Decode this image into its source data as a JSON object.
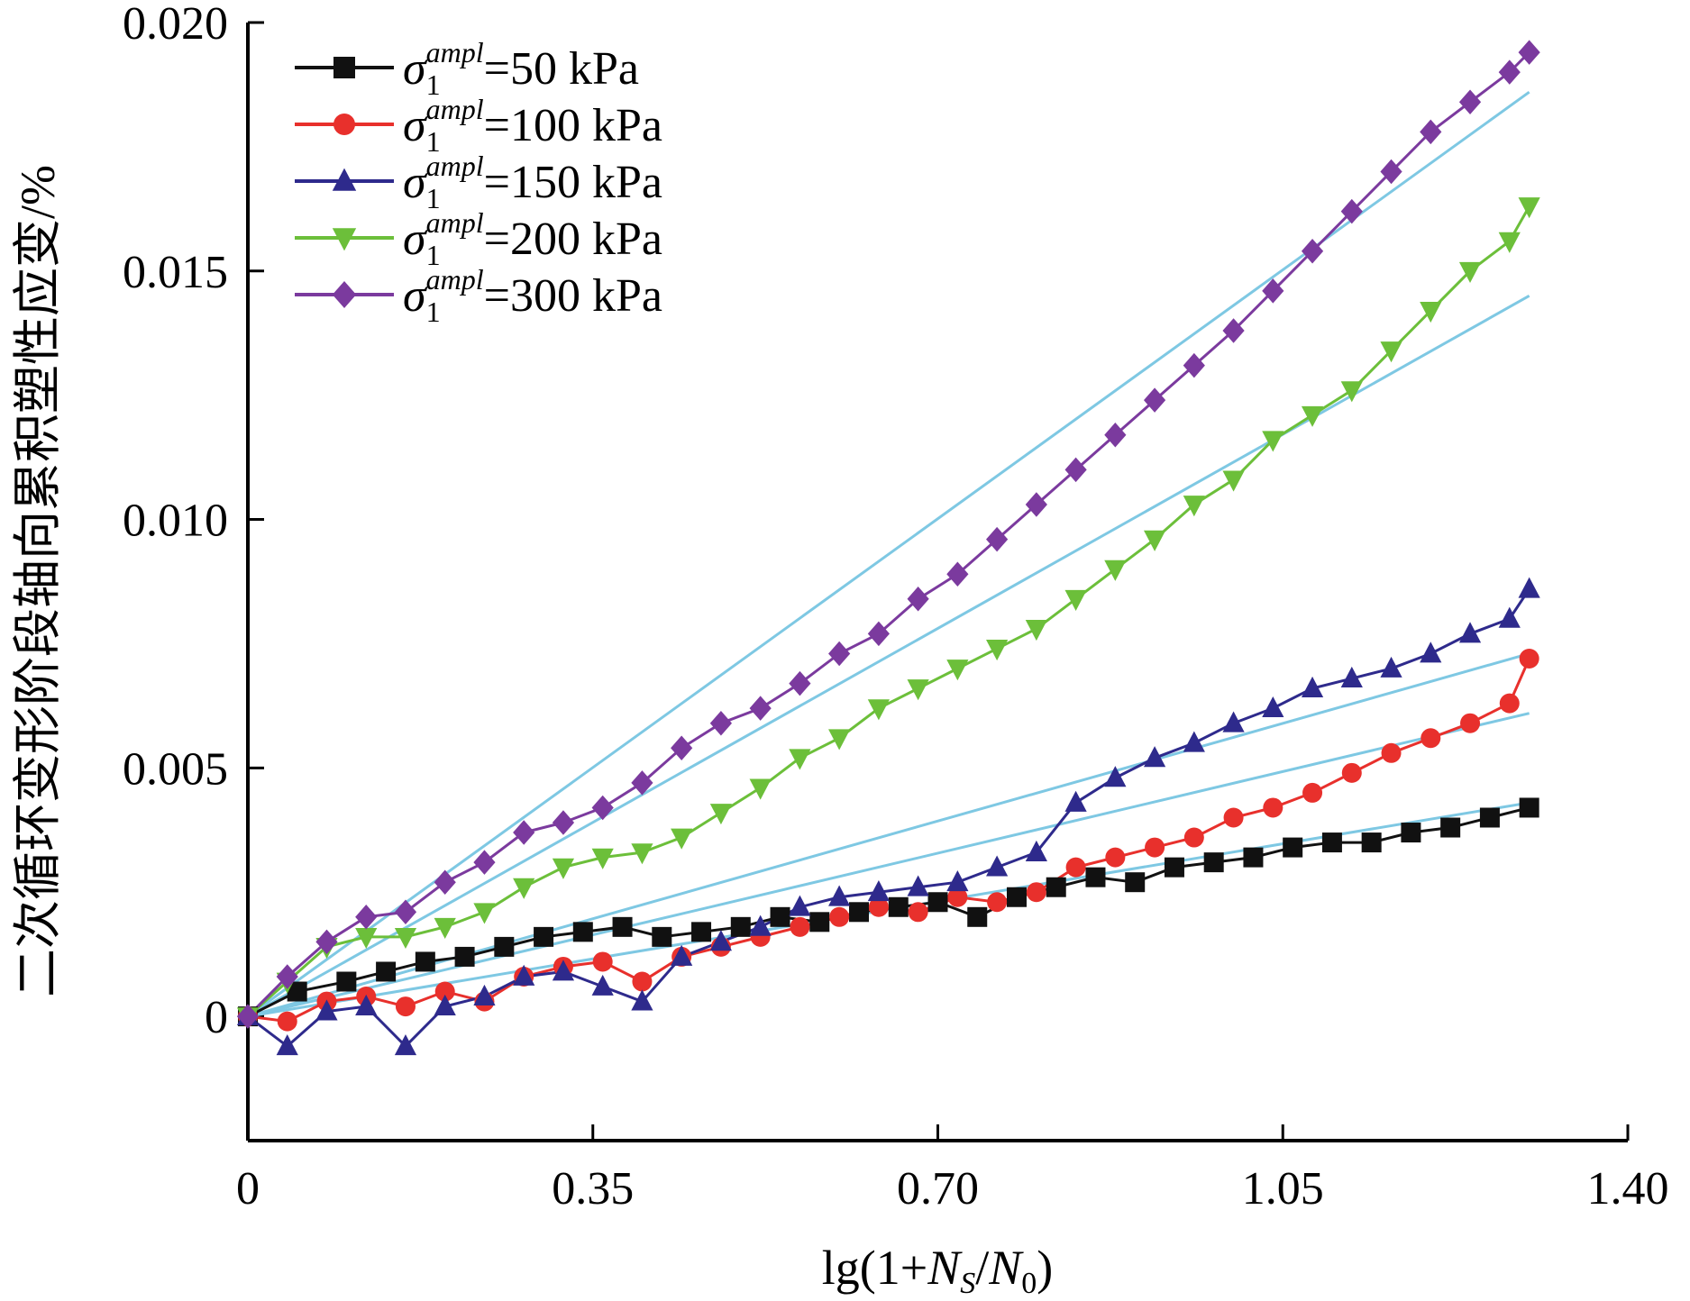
{
  "chart_data": {
    "type": "scatter",
    "xlabel": "lg(1+N_S/N_0)",
    "ylabel": "二次循环变形阶段轴向累积塑性应变/%",
    "xlim": [
      0,
      1.4
    ],
    "ylim": [
      -0.0025,
      0.02
    ],
    "x_ticks": [
      "0",
      "0.35",
      "0.70",
      "1.05",
      "1.40"
    ],
    "y_ticks": [
      "0",
      "0.005",
      "0.010",
      "0.015",
      "0.020"
    ],
    "legend_position": "top-left",
    "fit_line_color": "#7ec8e3",
    "series": [
      {
        "name": "σ1ampl=50 kPa",
        "label_main": "σ",
        "label_sub": "1",
        "label_sup": "ampl",
        "label_value": "=50 kPa",
        "color": "#111111",
        "marker": "square",
        "x": [
          0.0,
          0.05,
          0.1,
          0.14,
          0.18,
          0.22,
          0.26,
          0.3,
          0.34,
          0.38,
          0.42,
          0.46,
          0.5,
          0.54,
          0.58,
          0.62,
          0.66,
          0.7,
          0.74,
          0.78,
          0.82,
          0.86,
          0.9,
          0.94,
          0.98,
          1.02,
          1.06,
          1.1,
          1.14,
          1.18,
          1.22,
          1.26,
          1.3
        ],
        "y": [
          0.0,
          0.0005,
          0.0007,
          0.0009,
          0.0011,
          0.0012,
          0.0014,
          0.0016,
          0.0017,
          0.0018,
          0.0016,
          0.0017,
          0.0018,
          0.002,
          0.0019,
          0.0021,
          0.0022,
          0.0023,
          0.002,
          0.0024,
          0.0026,
          0.0028,
          0.0027,
          0.003,
          0.0031,
          0.0032,
          0.0034,
          0.0035,
          0.0035,
          0.0037,
          0.0038,
          0.004,
          0.0042
        ],
        "fit": [
          [
            0,
            0
          ],
          [
            1.3,
            0.0043
          ]
        ]
      },
      {
        "name": "σ1ampl=100 kPa",
        "label_main": "σ",
        "label_sub": "1",
        "label_sup": "ampl",
        "label_value": "=100 kPa",
        "color": "#e8302c",
        "marker": "circle",
        "x": [
          0.0,
          0.04,
          0.08,
          0.12,
          0.16,
          0.2,
          0.24,
          0.28,
          0.32,
          0.36,
          0.4,
          0.44,
          0.48,
          0.52,
          0.56,
          0.6,
          0.64,
          0.68,
          0.72,
          0.76,
          0.8,
          0.84,
          0.88,
          0.92,
          0.96,
          1.0,
          1.04,
          1.08,
          1.12,
          1.16,
          1.2,
          1.24,
          1.28,
          1.3
        ],
        "y": [
          0.0,
          -0.0001,
          0.0003,
          0.0004,
          0.0002,
          0.0005,
          0.0003,
          0.0008,
          0.001,
          0.0011,
          0.0007,
          0.0012,
          0.0014,
          0.0016,
          0.0018,
          0.002,
          0.0022,
          0.0021,
          0.0024,
          0.0023,
          0.0025,
          0.003,
          0.0032,
          0.0034,
          0.0036,
          0.004,
          0.0042,
          0.0045,
          0.0049,
          0.0053,
          0.0056,
          0.0059,
          0.0063,
          0.0072
        ],
        "fit": [
          [
            0,
            0
          ],
          [
            1.3,
            0.0061
          ]
        ]
      },
      {
        "name": "σ1ampl=150 kPa",
        "label_main": "σ",
        "label_sub": "1",
        "label_sup": "ampl",
        "label_value": "=150 kPa",
        "color": "#2e2a8c",
        "marker": "triangle",
        "x": [
          0.0,
          0.04,
          0.08,
          0.12,
          0.16,
          0.2,
          0.24,
          0.28,
          0.32,
          0.36,
          0.4,
          0.44,
          0.48,
          0.52,
          0.56,
          0.6,
          0.64,
          0.68,
          0.72,
          0.76,
          0.8,
          0.84,
          0.88,
          0.92,
          0.96,
          1.0,
          1.04,
          1.08,
          1.12,
          1.16,
          1.2,
          1.24,
          1.28,
          1.3
        ],
        "y": [
          0.0,
          -0.0006,
          0.0001,
          0.0002,
          -0.0006,
          0.0002,
          0.0004,
          0.0008,
          0.0009,
          0.0006,
          0.0003,
          0.0012,
          0.0015,
          0.0018,
          0.0022,
          0.0024,
          0.0025,
          0.0026,
          0.0027,
          0.003,
          0.0033,
          0.0043,
          0.0048,
          0.0052,
          0.0055,
          0.0059,
          0.0062,
          0.0066,
          0.0068,
          0.007,
          0.0073,
          0.0077,
          0.008,
          0.0086
        ],
        "fit": [
          [
            0,
            0
          ],
          [
            1.3,
            0.0073
          ]
        ]
      },
      {
        "name": "σ1ampl=200 kPa",
        "label_main": "σ",
        "label_sub": "1",
        "label_sup": "ampl",
        "label_value": "=200 kPa",
        "color": "#6cbf3a",
        "marker": "triangle-down",
        "x": [
          0.0,
          0.04,
          0.08,
          0.12,
          0.16,
          0.2,
          0.24,
          0.28,
          0.32,
          0.36,
          0.4,
          0.44,
          0.48,
          0.52,
          0.56,
          0.6,
          0.64,
          0.68,
          0.72,
          0.76,
          0.8,
          0.84,
          0.88,
          0.92,
          0.96,
          1.0,
          1.04,
          1.08,
          1.12,
          1.16,
          1.2,
          1.24,
          1.28,
          1.3
        ],
        "y": [
          0.0,
          0.0007,
          0.0014,
          0.0016,
          0.0016,
          0.0018,
          0.0021,
          0.0026,
          0.003,
          0.0032,
          0.0033,
          0.0036,
          0.0041,
          0.0046,
          0.0052,
          0.0056,
          0.0062,
          0.0066,
          0.007,
          0.0074,
          0.0078,
          0.0084,
          0.009,
          0.0096,
          0.0103,
          0.0108,
          0.0116,
          0.0121,
          0.0126,
          0.0134,
          0.0142,
          0.015,
          0.0156,
          0.0163
        ],
        "fit": [
          [
            0,
            0
          ],
          [
            1.3,
            0.0145
          ]
        ]
      },
      {
        "name": "σ1ampl=300 kPa",
        "label_main": "σ",
        "label_sub": "1",
        "label_sup": "ampl",
        "label_value": "=300 kPa",
        "color": "#7b3a9e",
        "marker": "diamond",
        "x": [
          0.0,
          0.04,
          0.08,
          0.12,
          0.16,
          0.2,
          0.24,
          0.28,
          0.32,
          0.36,
          0.4,
          0.44,
          0.48,
          0.52,
          0.56,
          0.6,
          0.64,
          0.68,
          0.72,
          0.76,
          0.8,
          0.84,
          0.88,
          0.92,
          0.96,
          1.0,
          1.04,
          1.08,
          1.12,
          1.16,
          1.2,
          1.24,
          1.28,
          1.3
        ],
        "y": [
          0.0,
          0.0008,
          0.0015,
          0.002,
          0.0021,
          0.0027,
          0.0031,
          0.0037,
          0.0039,
          0.0042,
          0.0047,
          0.0054,
          0.0059,
          0.0062,
          0.0067,
          0.0073,
          0.0077,
          0.0084,
          0.0089,
          0.0096,
          0.0103,
          0.011,
          0.0117,
          0.0124,
          0.0131,
          0.0138,
          0.0146,
          0.0154,
          0.0162,
          0.017,
          0.0178,
          0.0184,
          0.019,
          0.0194
        ],
        "fit": [
          [
            0,
            0
          ],
          [
            1.3,
            0.0186
          ]
        ]
      }
    ]
  }
}
